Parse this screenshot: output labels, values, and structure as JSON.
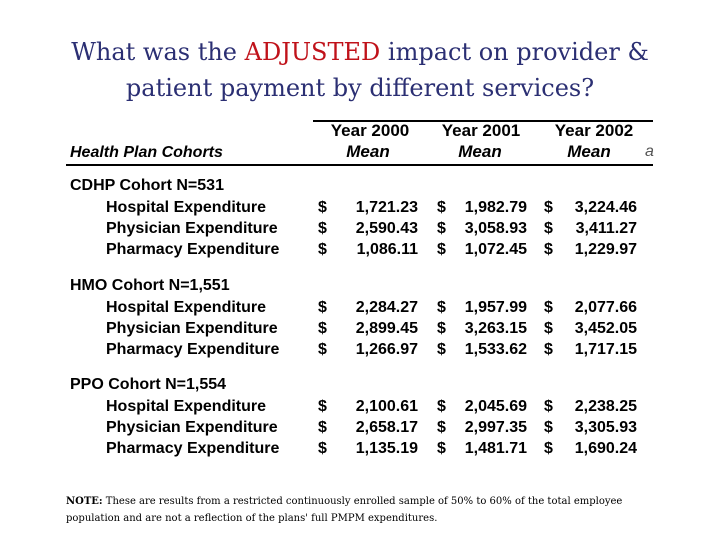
{
  "title": {
    "part1": "What was the ",
    "emphasis": "ADJUSTED",
    "part2": " impact on provider &",
    "line2": "patient payment by different services?"
  },
  "table": {
    "left_header": "Health Plan Cohorts",
    "columns": [
      {
        "year": "Year 2000",
        "stat": "Mean"
      },
      {
        "year": "Year 2001",
        "stat": "Mean"
      },
      {
        "year": "Year 2002",
        "stat": "Mean"
      }
    ],
    "stray_char": "a",
    "currency": "$",
    "groups": [
      {
        "name": "CDHP Cohort N=531",
        "rows": [
          {
            "label": "Hospital Expenditure",
            "values": [
              "1,721.23",
              "1,982.79",
              "3,224.46"
            ]
          },
          {
            "label": "Physician Expenditure",
            "values": [
              "2,590.43",
              "3,058.93",
              "3,411.27"
            ]
          },
          {
            "label": "Pharmacy Expenditure",
            "values": [
              "1,086.11",
              "1,072.45",
              "1,229.97"
            ]
          }
        ]
      },
      {
        "name": "HMO Cohort N=1,551",
        "rows": [
          {
            "label": "Hospital Expenditure",
            "values": [
              "2,284.27",
              "1,957.99",
              "2,077.66"
            ]
          },
          {
            "label": "Physician Expenditure",
            "values": [
              "2,899.45",
              "3,263.15",
              "3,452.05"
            ]
          },
          {
            "label": "Pharmacy Expenditure",
            "values": [
              "1,266.97",
              "1,533.62",
              "1,717.15"
            ]
          }
        ]
      },
      {
        "name": "PPO Cohort N=1,554",
        "rows": [
          {
            "label": "Hospital Expenditure",
            "values": [
              "2,100.61",
              "2,045.69",
              "2,238.25"
            ]
          },
          {
            "label": "Physician Expenditure",
            "values": [
              "2,658.17",
              "2,997.35",
              "3,305.93"
            ]
          },
          {
            "label": "Pharmacy Expenditure",
            "values": [
              "1,135.19",
              "1,481.71",
              "1,690.24"
            ]
          }
        ]
      }
    ]
  },
  "note": {
    "label": "NOTE:",
    "text": " These are results from a restricted continuously enrolled sample of 50% to 60% of the total employee population and are not a reflection of the plans' full PMPM expenditures."
  }
}
